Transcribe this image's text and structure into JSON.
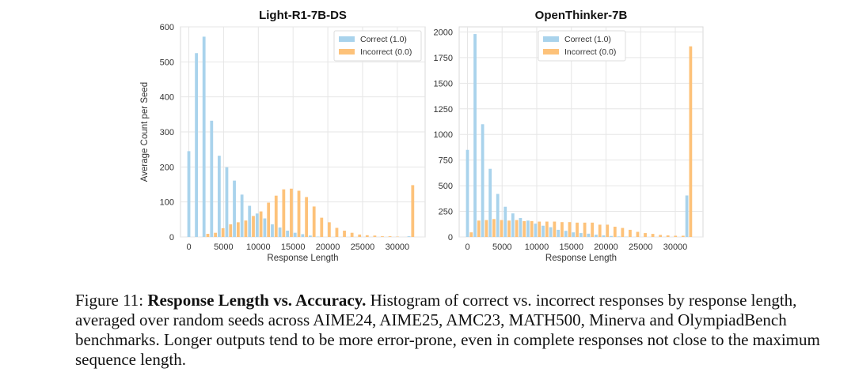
{
  "chart_data": [
    {
      "type": "bar",
      "title": "Light-R1-7B-DS",
      "xlabel": "Response Length",
      "ylabel": "Average Count per Seed",
      "xlim": [
        -1200,
        34000
      ],
      "ylim": [
        0,
        600
      ],
      "xticks": [
        0,
        5000,
        10000,
        15000,
        20000,
        25000,
        30000
      ],
      "yticks": [
        0,
        100,
        200,
        300,
        400,
        500,
        600
      ],
      "bin_width": 1092,
      "grid": true,
      "legend_position": "top-right",
      "series": [
        {
          "name": "Correct (1.0)",
          "color": "#a9d3ec",
          "values": [
            245,
            525,
            572,
            332,
            232,
            199,
            161,
            121,
            89,
            67,
            53,
            36,
            27,
            18,
            12,
            8,
            4,
            1,
            0,
            0,
            0,
            0,
            0,
            0,
            0,
            0,
            0,
            0,
            0,
            2
          ]
        },
        {
          "name": "Incorrect (0.0)",
          "color": "#fdc27a",
          "values": [
            0,
            0,
            9,
            12,
            25,
            36,
            42,
            47,
            60,
            73,
            98,
            118,
            136,
            138,
            132,
            114,
            87,
            55,
            42,
            26,
            18,
            12,
            7,
            5,
            4,
            2,
            2,
            1,
            0,
            148
          ]
        }
      ]
    },
    {
      "type": "bar",
      "title": "OpenThinker-7B",
      "xlabel": "Response Length",
      "ylabel": "",
      "xlim": [
        -1200,
        34000
      ],
      "ylim": [
        0,
        2050
      ],
      "xticks": [
        0,
        5000,
        10000,
        15000,
        20000,
        25000,
        30000
      ],
      "yticks": [
        0,
        250,
        500,
        750,
        1000,
        1250,
        1500,
        1750,
        2000
      ],
      "bin_width": 1092,
      "grid": true,
      "legend_position": "top-center",
      "series": [
        {
          "name": "Correct (1.0)",
          "color": "#a9d3ec",
          "values": [
            850,
            1980,
            1100,
            665,
            420,
            295,
            230,
            185,
            160,
            130,
            110,
            95,
            70,
            60,
            45,
            38,
            32,
            22,
            15,
            10,
            5,
            3,
            0,
            0,
            0,
            0,
            0,
            0,
            0,
            405
          ]
        },
        {
          "name": "Incorrect (0.0)",
          "color": "#fdc27a",
          "values": [
            45,
            160,
            165,
            175,
            165,
            160,
            165,
            155,
            155,
            150,
            150,
            150,
            145,
            145,
            140,
            140,
            140,
            120,
            120,
            100,
            88,
            70,
            50,
            38,
            30,
            20,
            15,
            12,
            12,
            1860
          ]
        }
      ]
    }
  ],
  "caption": {
    "label": "Figure 11:",
    "bold": "Response Length vs. Accuracy.",
    "text": "Histogram of correct vs. incorrect responses by response length, averaged over random seeds across AIME24, AIME25, AMC23, MATH500, Minerva and OlympiadBench benchmarks. Longer outputs tend to be more error-prone, even in complete responses not close to the maximum sequence length."
  }
}
